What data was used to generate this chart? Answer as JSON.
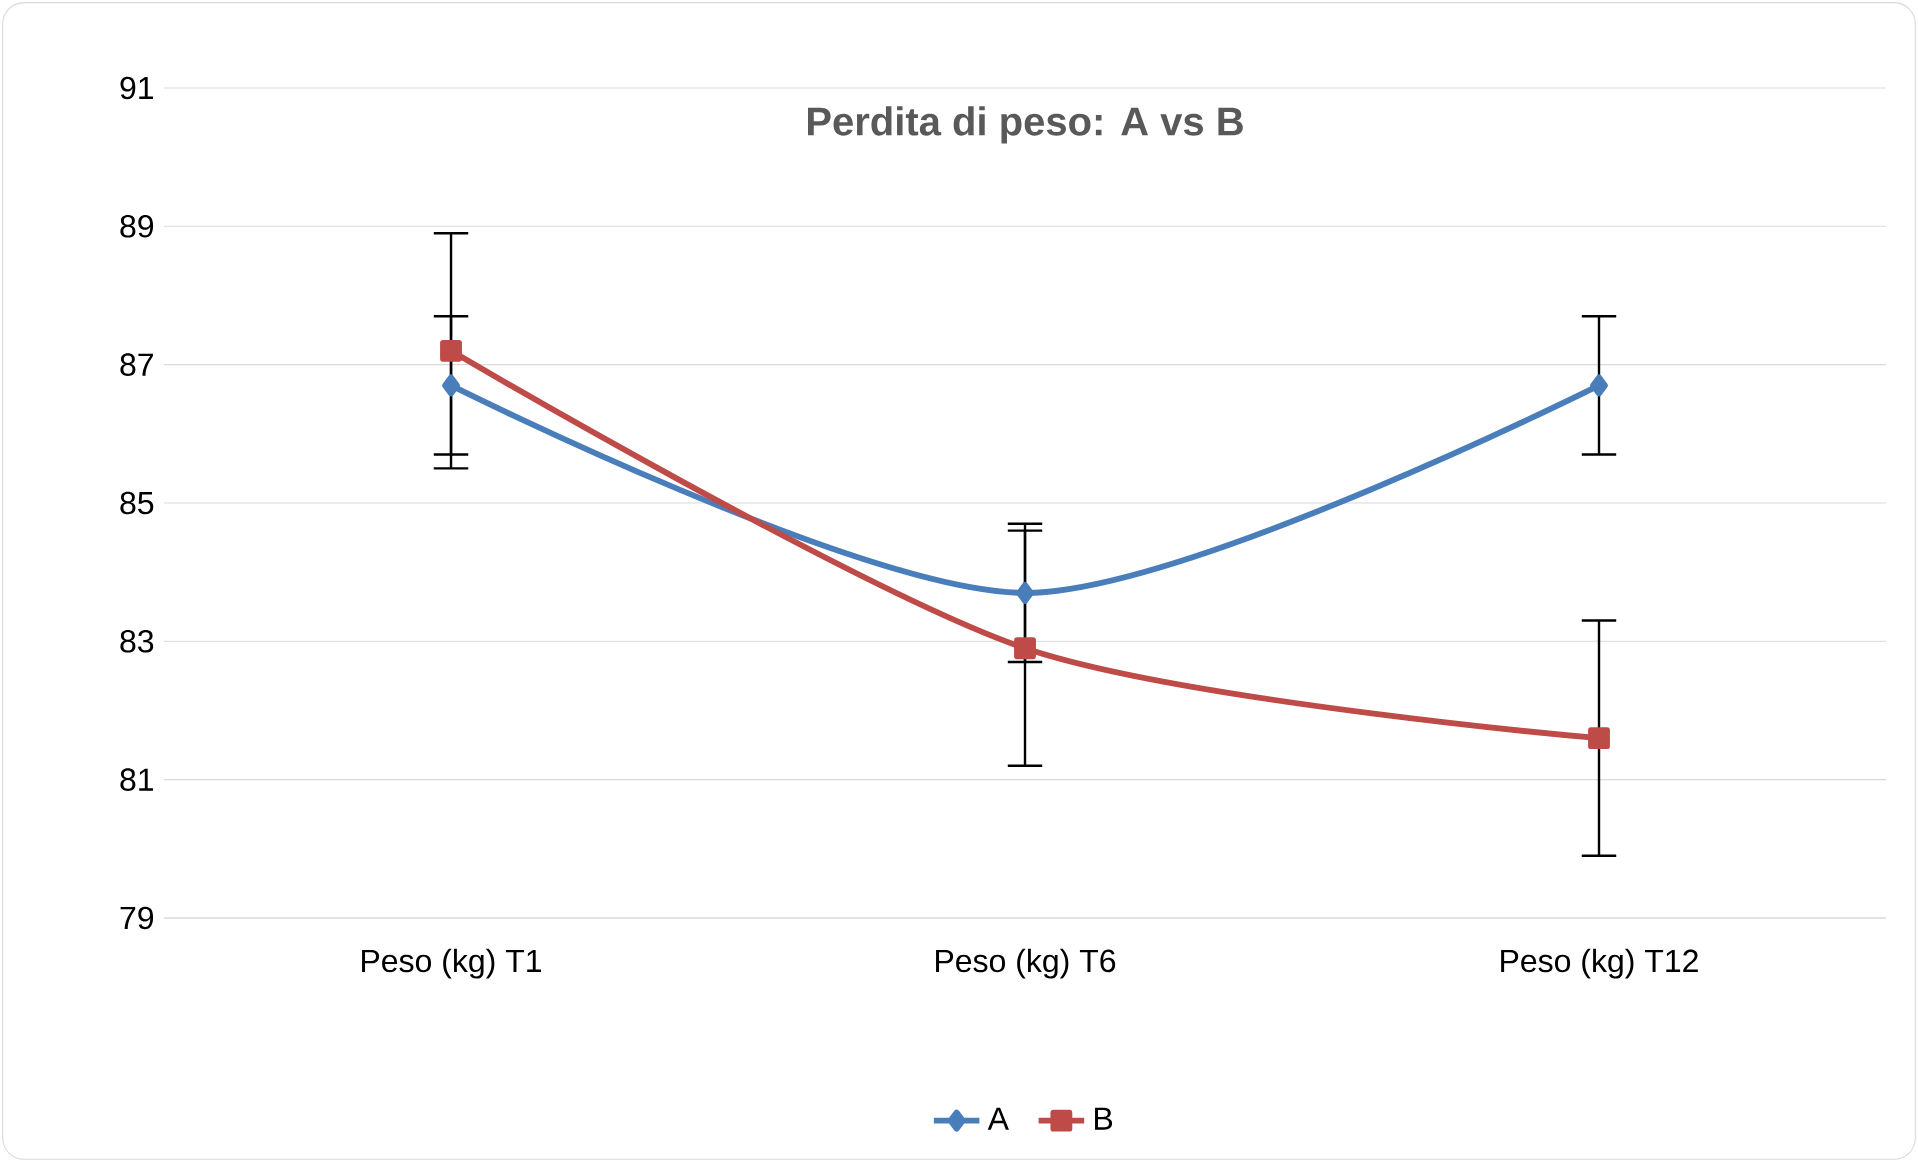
{
  "chart_data": {
    "type": "line",
    "title": "Perdita di peso: A vs B",
    "categories": [
      "Peso (kg) T1",
      "Peso (kg) T6",
      "Peso (kg) T12"
    ],
    "series": [
      {
        "name": "A",
        "color": "#4a7ebb",
        "marker": "diamond",
        "values": [
          86.7,
          83.7,
          86.7
        ],
        "errors": [
          1.0,
          1.0,
          1.0
        ]
      },
      {
        "name": "B",
        "color": "#be4b48",
        "marker": "square",
        "values": [
          87.2,
          82.9,
          81.6
        ],
        "errors": [
          1.7,
          1.7,
          1.7
        ]
      }
    ],
    "ylim": [
      79,
      91
    ],
    "yticks": [
      79,
      81,
      83,
      85,
      87,
      89,
      91
    ],
    "grid": "y",
    "legend": "bottom"
  }
}
